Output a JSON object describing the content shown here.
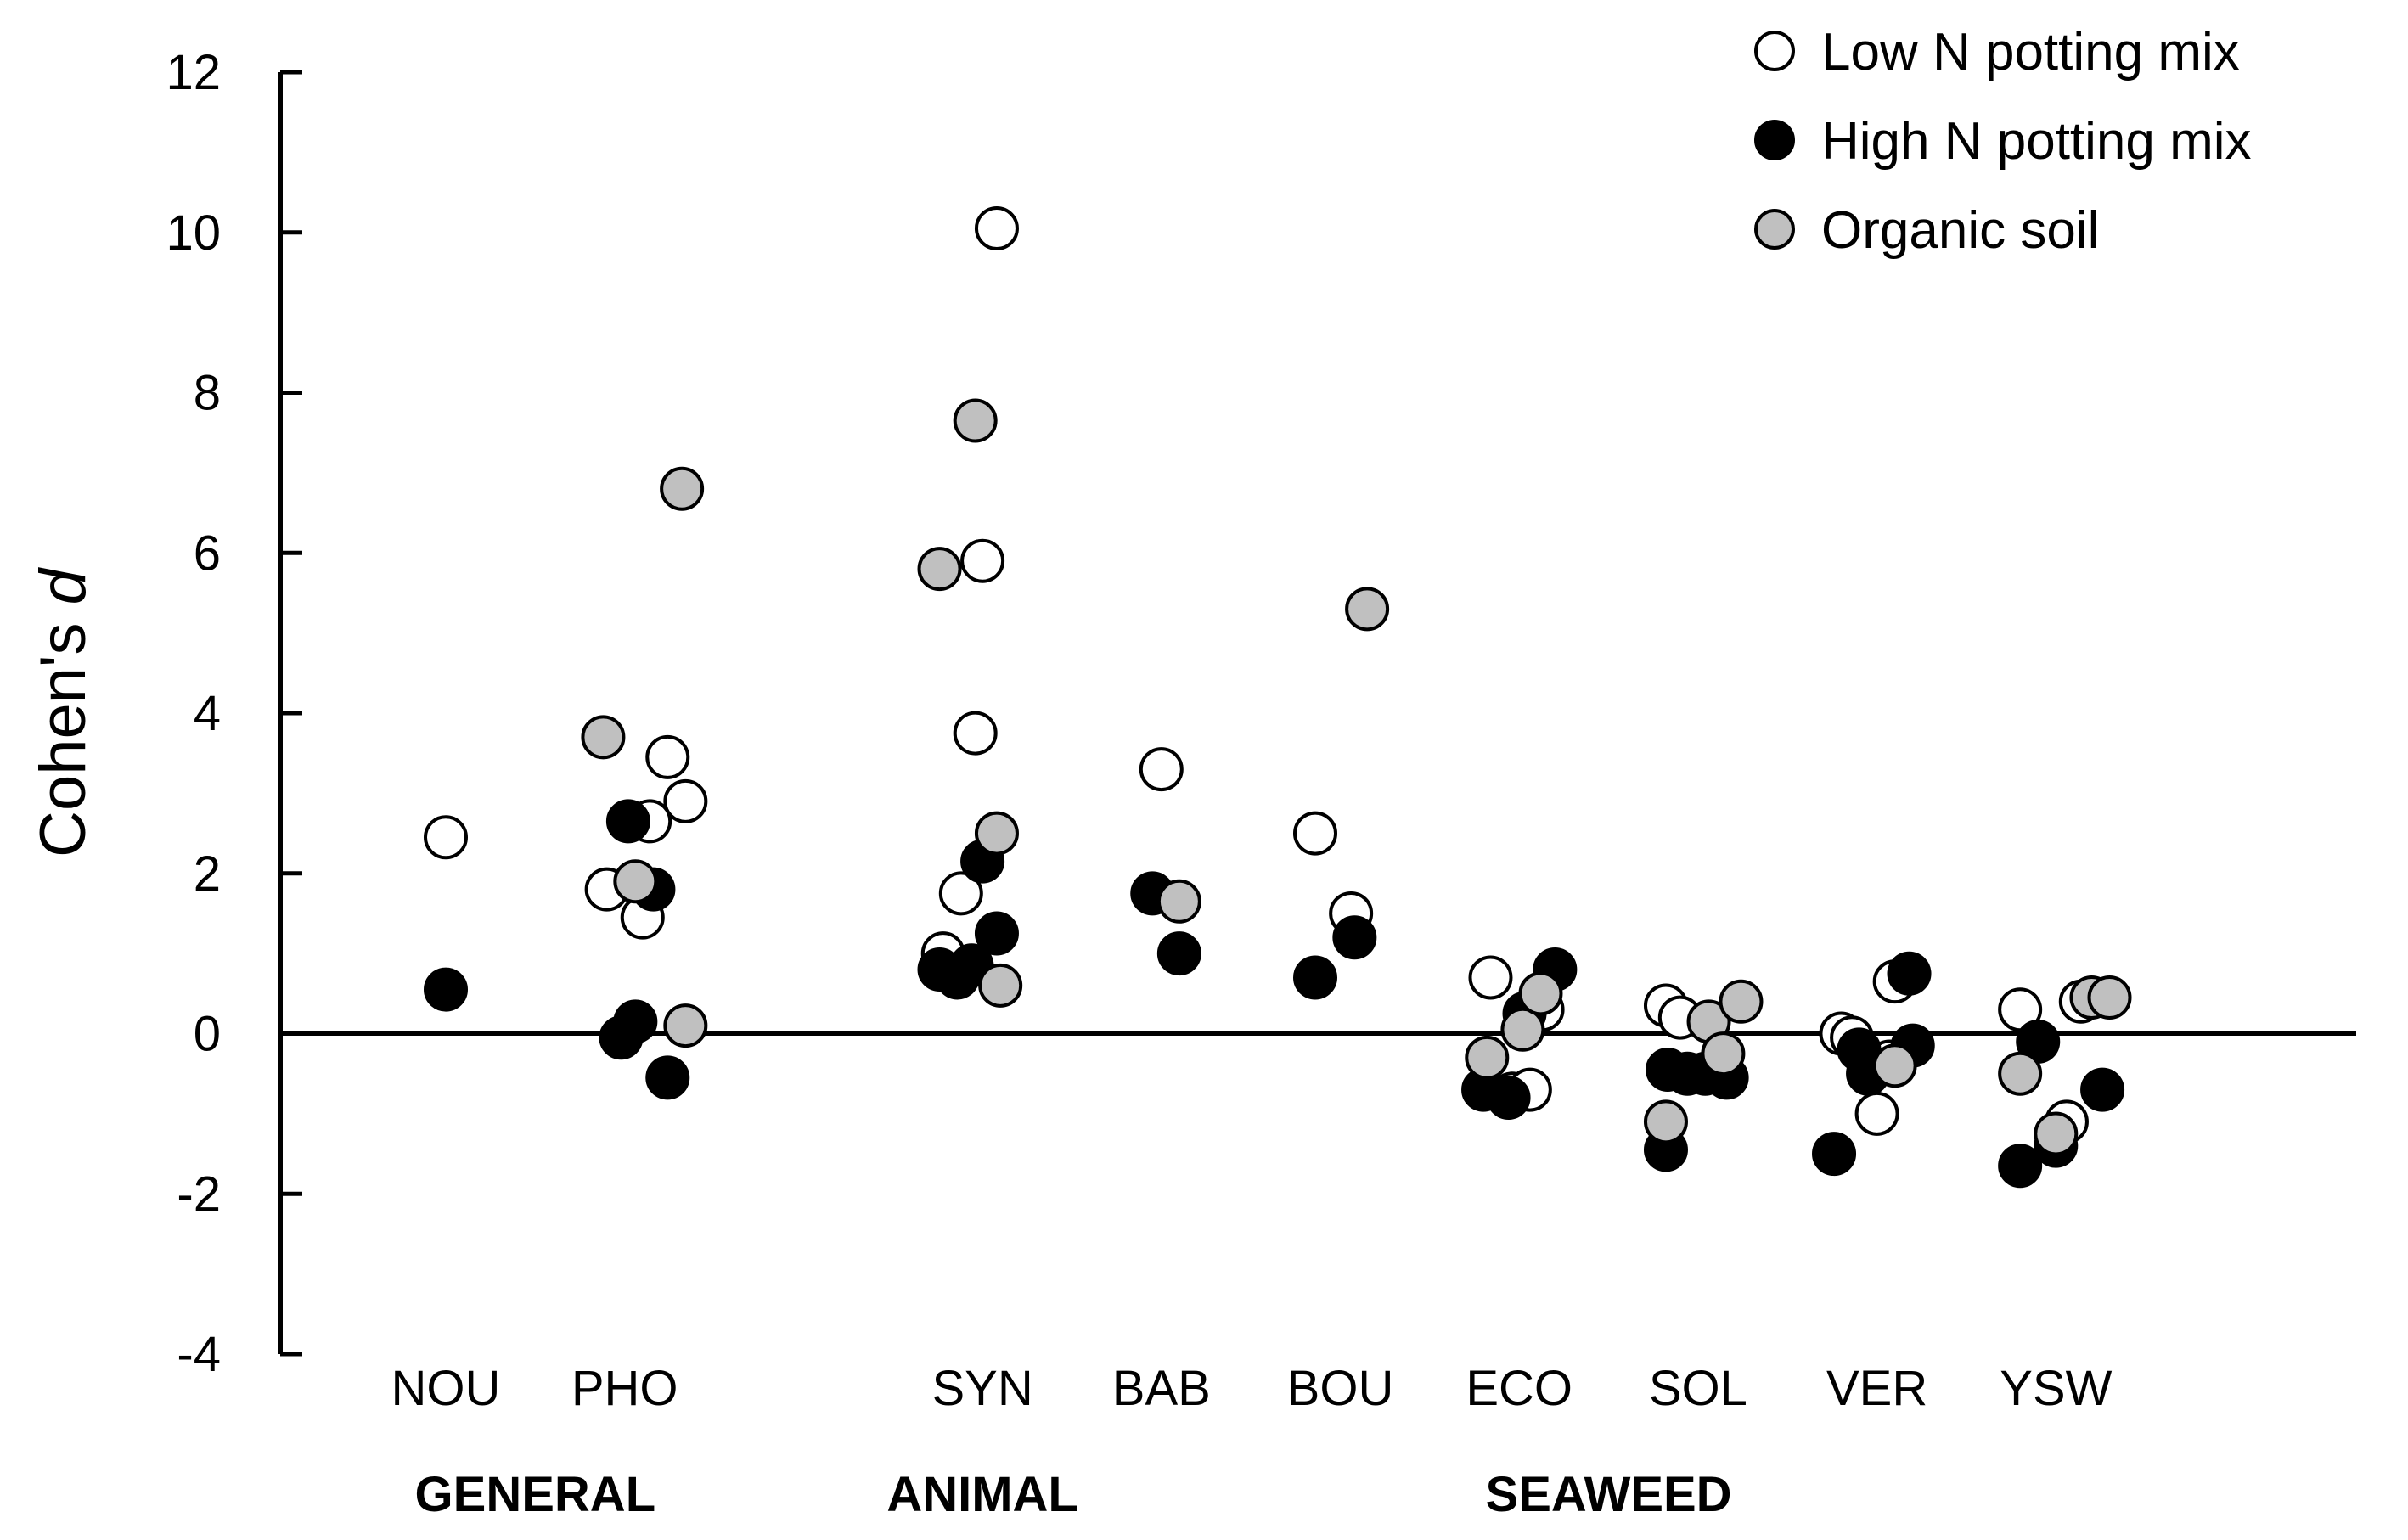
{
  "chart_data": {
    "type": "scatter",
    "title": "",
    "xlabel": "",
    "ylabel": "Cohen's",
    "ylabel_italic": "d",
    "ylim": [
      -4,
      12
    ],
    "yticks": [
      -4,
      -2,
      0,
      2,
      4,
      6,
      8,
      10,
      12
    ],
    "categories": [
      "NOU",
      "PHO",
      "SYN",
      "BAB",
      "BOU",
      "ECO",
      "SOL",
      "VER",
      "YSW"
    ],
    "category_positions": [
      1,
      2,
      4,
      5,
      6,
      7,
      8,
      9,
      10
    ],
    "groups": [
      {
        "label": "GENERAL",
        "categories": [
          "NOU",
          "PHO"
        ]
      },
      {
        "label": "ANIMAL",
        "categories": [
          "SYN"
        ]
      },
      {
        "label": "SEAWEED",
        "categories": [
          "BAB",
          "BOU",
          "ECO",
          "SOL",
          "VER",
          "YSW"
        ]
      }
    ],
    "legend": {
      "placement": "top-right"
    },
    "series": [
      {
        "name": "Low N potting mix",
        "color": "#ffffff",
        "edge": "#000000",
        "points": [
          {
            "x": 1.0,
            "y": 2.45
          },
          {
            "x": 1.9,
            "y": 1.8
          },
          {
            "x": 2.1,
            "y": 1.45
          },
          {
            "x": 2.14,
            "y": 2.65
          },
          {
            "x": 2.24,
            "y": 3.45
          },
          {
            "x": 2.34,
            "y": 2.9
          },
          {
            "x": 3.78,
            "y": 1.0
          },
          {
            "x": 3.88,
            "y": 1.75
          },
          {
            "x": 3.96,
            "y": 3.75
          },
          {
            "x": 4.0,
            "y": 5.9
          },
          {
            "x": 4.08,
            "y": 10.05
          },
          {
            "x": 5.0,
            "y": 3.3
          },
          {
            "x": 5.86,
            "y": 2.5
          },
          {
            "x": 6.06,
            "y": 1.5
          },
          {
            "x": 6.84,
            "y": 0.7
          },
          {
            "x": 6.96,
            "y": -0.75
          },
          {
            "x": 7.06,
            "y": -0.7
          },
          {
            "x": 7.13,
            "y": 0.3
          },
          {
            "x": 7.82,
            "y": 0.35
          },
          {
            "x": 7.9,
            "y": 0.2
          },
          {
            "x": 8.8,
            "y": 0.0
          },
          {
            "x": 8.86,
            "y": -0.05
          },
          {
            "x": 9.0,
            "y": -1.0
          },
          {
            "x": 9.07,
            "y": -0.35
          },
          {
            "x": 9.1,
            "y": 0.65
          },
          {
            "x": 9.8,
            "y": 0.3
          },
          {
            "x": 10.06,
            "y": -1.1
          },
          {
            "x": 10.14,
            "y": 0.4
          }
        ]
      },
      {
        "name": "High N potting mix",
        "color": "#000000",
        "edge": "#000000",
        "points": [
          {
            "x": 1.0,
            "y": 0.55
          },
          {
            "x": 1.98,
            "y": -0.05
          },
          {
            "x": 2.02,
            "y": 2.65
          },
          {
            "x": 2.06,
            "y": 0.15
          },
          {
            "x": 2.16,
            "y": 1.8
          },
          {
            "x": 2.24,
            "y": -0.55
          },
          {
            "x": 3.76,
            "y": 0.8
          },
          {
            "x": 3.86,
            "y": 0.7
          },
          {
            "x": 3.94,
            "y": 0.85
          },
          {
            "x": 4.0,
            "y": 2.15
          },
          {
            "x": 4.08,
            "y": 1.25
          },
          {
            "x": 4.95,
            "y": 1.75
          },
          {
            "x": 5.1,
            "y": 1.0
          },
          {
            "x": 5.86,
            "y": 0.7
          },
          {
            "x": 6.08,
            "y": 1.2
          },
          {
            "x": 6.8,
            "y": -0.7
          },
          {
            "x": 6.94,
            "y": -0.8
          },
          {
            "x": 7.03,
            "y": 0.25
          },
          {
            "x": 7.2,
            "y": 0.8
          },
          {
            "x": 7.82,
            "y": -1.45
          },
          {
            "x": 7.83,
            "y": -0.45
          },
          {
            "x": 7.94,
            "y": -0.5
          },
          {
            "x": 8.04,
            "y": -0.5
          },
          {
            "x": 8.16,
            "y": -0.55
          },
          {
            "x": 8.76,
            "y": -1.5
          },
          {
            "x": 8.9,
            "y": -0.2
          },
          {
            "x": 8.95,
            "y": -0.5
          },
          {
            "x": 9.18,
            "y": 0.75
          },
          {
            "x": 9.2,
            "y": -0.15
          },
          {
            "x": 9.8,
            "y": -1.65
          },
          {
            "x": 9.9,
            "y": -0.1
          },
          {
            "x": 10.0,
            "y": -1.4
          },
          {
            "x": 10.26,
            "y": -0.7
          }
        ]
      },
      {
        "name": "Organic soil",
        "color": "#c0c0c0",
        "edge": "#000000",
        "points": [
          {
            "x": 1.88,
            "y": 3.7
          },
          {
            "x": 2.06,
            "y": 1.9
          },
          {
            "x": 2.32,
            "y": 6.8
          },
          {
            "x": 2.34,
            "y": 0.1
          },
          {
            "x": 3.76,
            "y": 5.8
          },
          {
            "x": 3.96,
            "y": 7.65
          },
          {
            "x": 4.08,
            "y": 2.5
          },
          {
            "x": 4.1,
            "y": 0.6
          },
          {
            "x": 5.1,
            "y": 1.65
          },
          {
            "x": 6.15,
            "y": 5.3
          },
          {
            "x": 6.82,
            "y": -0.3
          },
          {
            "x": 7.02,
            "y": 0.05
          },
          {
            "x": 7.12,
            "y": 0.5
          },
          {
            "x": 7.82,
            "y": -1.1
          },
          {
            "x": 8.06,
            "y": 0.15
          },
          {
            "x": 8.14,
            "y": -0.25
          },
          {
            "x": 8.24,
            "y": 0.4
          },
          {
            "x": 9.1,
            "y": -0.4
          },
          {
            "x": 9.8,
            "y": -0.5
          },
          {
            "x": 10.0,
            "y": -1.25
          },
          {
            "x": 10.2,
            "y": 0.45
          },
          {
            "x": 10.3,
            "y": 0.45
          }
        ]
      }
    ]
  }
}
